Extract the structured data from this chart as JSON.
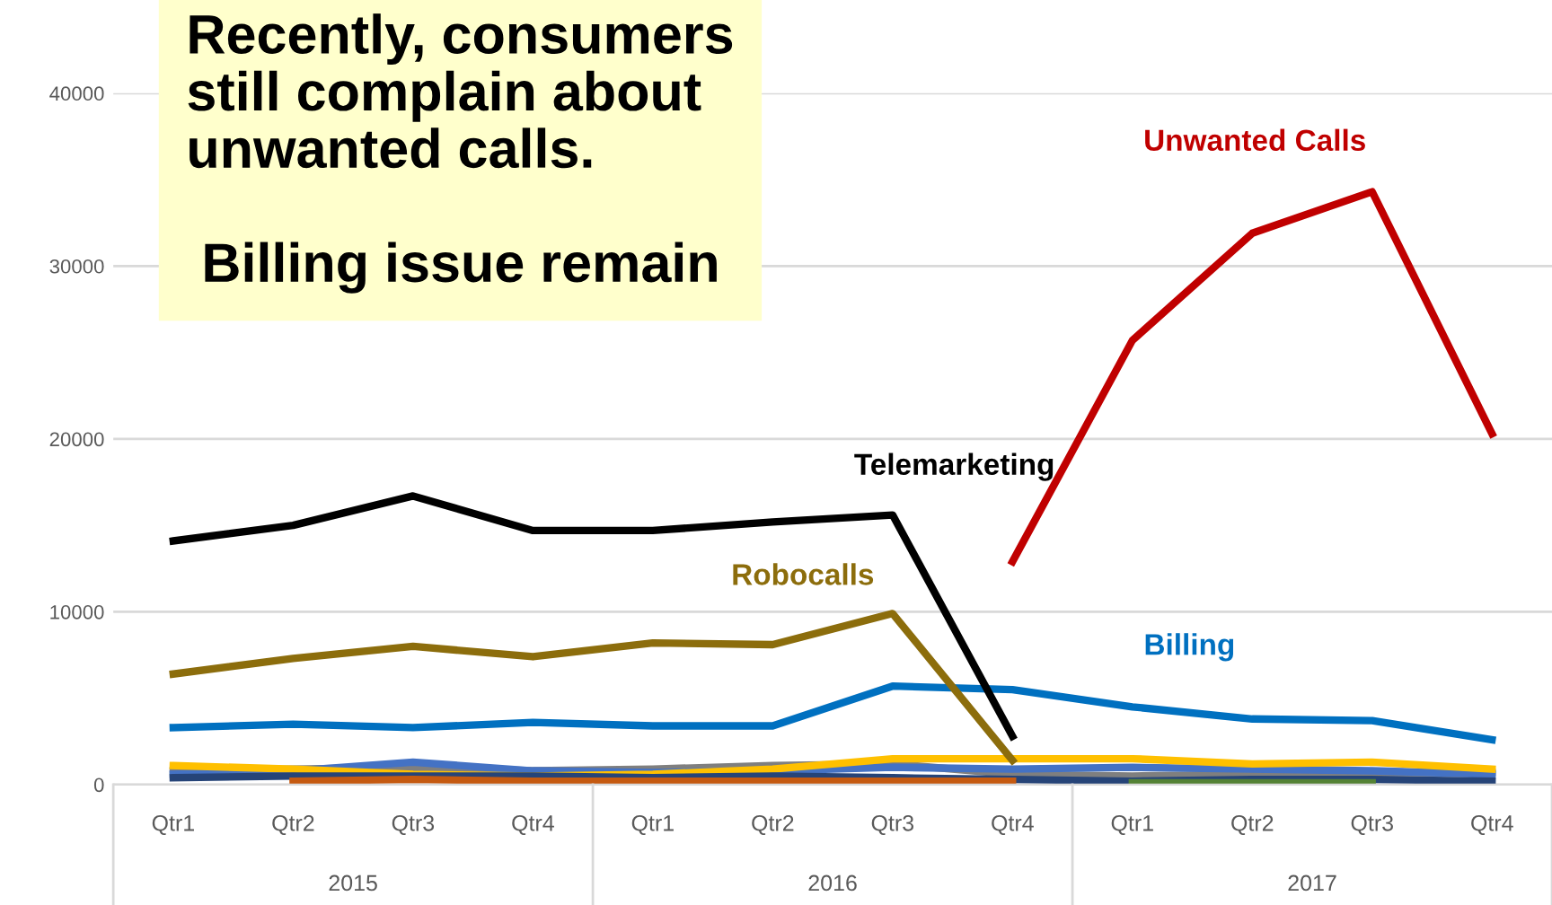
{
  "chart_data": {
    "type": "line",
    "categories": [
      "Qtr1",
      "Qtr2",
      "Qtr3",
      "Qtr4",
      "Qtr1",
      "Qtr2",
      "Qtr3",
      "Qtr4",
      "Qtr1",
      "Qtr2",
      "Qtr3",
      "Qtr4"
    ],
    "series": [
      {
        "color": "#7f7f7f",
        "values": [
          800,
          900,
          1000,
          800,
          900,
          1100,
          1200,
          600,
          500,
          600,
          700,
          700
        ]
      },
      {
        "color": "#4472c4",
        "values": [
          600,
          800,
          1300,
          800,
          700,
          800,
          1000,
          900,
          1000,
          900,
          800,
          600
        ]
      },
      {
        "color": "#ffc000",
        "values": [
          1100,
          900,
          600,
          500,
          600,
          900,
          1500,
          1500,
          1500,
          1200,
          1300,
          900
        ]
      },
      {
        "color": "#264478",
        "values": [
          400,
          500,
          500,
          500,
          400,
          500,
          400,
          300,
          200,
          300,
          300,
          200
        ]
      },
      {
        "color": "#c55a11",
        "values": [
          null,
          200,
          300,
          200,
          200,
          200,
          200,
          200,
          null,
          null,
          null,
          null
        ]
      },
      {
        "color": "#548235",
        "values": [
          null,
          null,
          null,
          null,
          null,
          null,
          null,
          null,
          100,
          100,
          100,
          null
        ]
      },
      {
        "name": "Billing",
        "color": "#0070c0",
        "values": [
          3300,
          3500,
          3300,
          3600,
          3400,
          3400,
          5700,
          5500,
          4500,
          3800,
          3700,
          2600
        ]
      },
      {
        "name": "Robocalls",
        "color": "#8c6d0c",
        "values": [
          6400,
          7300,
          8000,
          7400,
          8200,
          8100,
          9900,
          1400,
          null,
          null,
          null,
          null
        ]
      },
      {
        "name": "Telemarketing",
        "color": "#000000",
        "values": [
          14100,
          15000,
          16700,
          14700,
          14700,
          15200,
          15600,
          2800,
          null,
          null,
          null,
          null
        ]
      },
      {
        "name": "Unwanted Calls",
        "color": "#c00000",
        "values": [
          null,
          null,
          null,
          null,
          null,
          null,
          null,
          12900,
          25700,
          31900,
          34300,
          20300
        ]
      }
    ],
    "ylim": [
      0,
      40000
    ],
    "yticks": [
      0,
      10000,
      20000,
      30000,
      40000
    ],
    "grid": "y",
    "legend": false,
    "line_style": "solid",
    "annotations": [
      "Recently, consumers\nstill complain about\nunwanted calls.\n\n Billing issue remain",
      "2015",
      "2016",
      "2017"
    ]
  }
}
